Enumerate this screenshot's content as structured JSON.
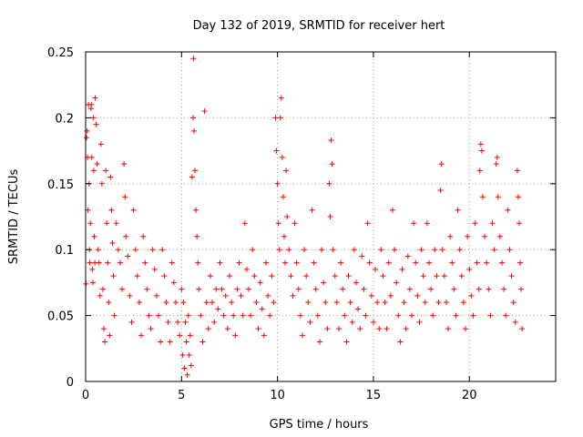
{
  "chart_data": {
    "type": "scatter",
    "title": "Day 132 of 2019, SRMTID for receiver hert",
    "xlabel": "GPS time / hours",
    "ylabel": "SRMTID / TECUs",
    "xlim": [
      0,
      24.5
    ],
    "ylim": [
      0,
      0.25
    ],
    "x_ticks": [
      0,
      5,
      10,
      15,
      20
    ],
    "y_ticks": [
      0,
      0.05,
      0.1,
      0.15,
      0.2,
      0.25
    ],
    "x_tick_labels": [
      "0",
      "5",
      "10",
      "15",
      "20"
    ],
    "y_tick_labels": [
      "0",
      "0.05",
      "0.1",
      "0.15",
      "0.2",
      "0.25"
    ],
    "grid": true,
    "marker": "plus",
    "color": "#ff0000",
    "series": [
      {
        "name": "SRMTID",
        "points": [
          [
            0.02,
            0.074
          ],
          [
            0.05,
            0.185
          ],
          [
            0.08,
            0.19
          ],
          [
            0.1,
            0.17
          ],
          [
            0.12,
            0.13
          ],
          [
            0.15,
            0.21
          ],
          [
            0.18,
            0.15
          ],
          [
            0.2,
            0.1
          ],
          [
            0.22,
            0.09
          ],
          [
            0.25,
            0.12
          ],
          [
            0.28,
            0.207
          ],
          [
            0.3,
            0.21
          ],
          [
            0.32,
            0.17
          ],
          [
            0.35,
            0.085
          ],
          [
            0.38,
            0.075
          ],
          [
            0.4,
            0.2
          ],
          [
            0.42,
            0.16
          ],
          [
            0.45,
            0.11
          ],
          [
            0.48,
            0.09
          ],
          [
            0.5,
            0.215
          ],
          [
            0.55,
            0.195
          ],
          [
            0.6,
            0.165
          ],
          [
            0.65,
            0.1
          ],
          [
            0.7,
            0.09
          ],
          [
            0.75,
            0.065
          ],
          [
            0.8,
            0.18
          ],
          [
            0.85,
            0.15
          ],
          [
            0.9,
            0.07
          ],
          [
            0.95,
            0.04
          ],
          [
            1.0,
            0.03
          ],
          [
            1.05,
            0.16
          ],
          [
            1.1,
            0.12
          ],
          [
            1.15,
            0.09
          ],
          [
            1.2,
            0.06
          ],
          [
            1.25,
            0.035
          ],
          [
            1.3,
            0.155
          ],
          [
            1.35,
            0.13
          ],
          [
            1.4,
            0.105
          ],
          [
            1.45,
            0.08
          ],
          [
            1.5,
            0.05
          ],
          [
            1.6,
            0.12
          ],
          [
            1.7,
            0.1
          ],
          [
            1.8,
            0.09
          ],
          [
            1.9,
            0.07
          ],
          [
            2.0,
            0.165
          ],
          [
            2.05,
            0.14
          ],
          [
            2.1,
            0.11
          ],
          [
            2.2,
            0.095
          ],
          [
            2.3,
            0.065
          ],
          [
            2.4,
            0.045
          ],
          [
            2.5,
            0.13
          ],
          [
            2.6,
            0.1
          ],
          [
            2.7,
            0.08
          ],
          [
            2.8,
            0.06
          ],
          [
            2.9,
            0.035
          ],
          [
            3.0,
            0.11
          ],
          [
            3.1,
            0.09
          ],
          [
            3.2,
            0.07
          ],
          [
            3.3,
            0.05
          ],
          [
            3.4,
            0.04
          ],
          [
            3.5,
            0.1
          ],
          [
            3.6,
            0.085
          ],
          [
            3.7,
            0.065
          ],
          [
            3.8,
            0.05
          ],
          [
            3.9,
            0.03
          ],
          [
            4.0,
            0.1
          ],
          [
            4.1,
            0.08
          ],
          [
            4.2,
            0.06
          ],
          [
            4.3,
            0.045
          ],
          [
            4.4,
            0.03
          ],
          [
            4.5,
            0.09
          ],
          [
            4.6,
            0.075
          ],
          [
            4.7,
            0.06
          ],
          [
            4.8,
            0.045
          ],
          [
            4.9,
            0.035
          ],
          [
            5.0,
            0.07
          ],
          [
            5.05,
            0.02
          ],
          [
            5.1,
            0.06
          ],
          [
            5.15,
            0.01
          ],
          [
            5.2,
            0.045
          ],
          [
            5.25,
            0.03
          ],
          [
            5.3,
            0.005
          ],
          [
            5.35,
            0.05
          ],
          [
            5.4,
            0.02
          ],
          [
            5.45,
            0.035
          ],
          [
            5.5,
            0.012
          ],
          [
            5.55,
            0.155
          ],
          [
            5.6,
            0.2
          ],
          [
            5.62,
            0.245
          ],
          [
            5.65,
            0.19
          ],
          [
            5.7,
            0.16
          ],
          [
            5.75,
            0.13
          ],
          [
            5.8,
            0.11
          ],
          [
            5.85,
            0.09
          ],
          [
            5.9,
            0.07
          ],
          [
            6.0,
            0.05
          ],
          [
            6.1,
            0.03
          ],
          [
            6.2,
            0.205
          ],
          [
            6.3,
            0.06
          ],
          [
            6.4,
            0.04
          ],
          [
            6.5,
            0.08
          ],
          [
            6.6,
            0.06
          ],
          [
            6.7,
            0.045
          ],
          [
            6.8,
            0.07
          ],
          [
            6.9,
            0.055
          ],
          [
            7.0,
            0.09
          ],
          [
            7.1,
            0.07
          ],
          [
            7.2,
            0.05
          ],
          [
            7.3,
            0.065
          ],
          [
            7.4,
            0.04
          ],
          [
            7.5,
            0.08
          ],
          [
            7.6,
            0.06
          ],
          [
            7.7,
            0.05
          ],
          [
            7.8,
            0.035
          ],
          [
            7.9,
            0.07
          ],
          [
            8.0,
            0.09
          ],
          [
            8.1,
            0.065
          ],
          [
            8.2,
            0.05
          ],
          [
            8.3,
            0.12
          ],
          [
            8.4,
            0.085
          ],
          [
            8.5,
            0.07
          ],
          [
            8.6,
            0.05
          ],
          [
            8.7,
            0.1
          ],
          [
            8.8,
            0.08
          ],
          [
            8.9,
            0.06
          ],
          [
            9.0,
            0.04
          ],
          [
            9.1,
            0.075
          ],
          [
            9.2,
            0.055
          ],
          [
            9.3,
            0.035
          ],
          [
            9.4,
            0.09
          ],
          [
            9.5,
            0.065
          ],
          [
            9.6,
            0.05
          ],
          [
            9.7,
            0.08
          ],
          [
            9.8,
            0.06
          ],
          [
            9.9,
            0.2
          ],
          [
            9.95,
            0.175
          ],
          [
            10.0,
            0.15
          ],
          [
            10.05,
            0.12
          ],
          [
            10.1,
            0.1
          ],
          [
            10.15,
            0.2
          ],
          [
            10.2,
            0.215
          ],
          [
            10.25,
            0.17
          ],
          [
            10.3,
            0.14
          ],
          [
            10.35,
            0.11
          ],
          [
            10.4,
            0.09
          ],
          [
            10.45,
            0.16
          ],
          [
            10.5,
            0.125
          ],
          [
            10.6,
            0.1
          ],
          [
            10.7,
            0.08
          ],
          [
            10.8,
            0.065
          ],
          [
            10.9,
            0.12
          ],
          [
            11.0,
            0.09
          ],
          [
            11.1,
            0.07
          ],
          [
            11.2,
            0.05
          ],
          [
            11.3,
            0.035
          ],
          [
            11.4,
            0.1
          ],
          [
            11.5,
            0.08
          ],
          [
            11.6,
            0.06
          ],
          [
            11.7,
            0.045
          ],
          [
            11.8,
            0.13
          ],
          [
            11.9,
            0.09
          ],
          [
            12.0,
            0.07
          ],
          [
            12.1,
            0.05
          ],
          [
            12.2,
            0.03
          ],
          [
            12.3,
            0.1
          ],
          [
            12.4,
            0.075
          ],
          [
            12.5,
            0.06
          ],
          [
            12.6,
            0.04
          ],
          [
            12.7,
            0.15
          ],
          [
            12.75,
            0.125
          ],
          [
            12.8,
            0.183
          ],
          [
            12.85,
            0.165
          ],
          [
            12.9,
            0.1
          ],
          [
            13.0,
            0.08
          ],
          [
            13.1,
            0.06
          ],
          [
            13.2,
            0.04
          ],
          [
            13.3,
            0.09
          ],
          [
            13.4,
            0.07
          ],
          [
            13.5,
            0.05
          ],
          [
            13.6,
            0.03
          ],
          [
            13.7,
            0.08
          ],
          [
            13.8,
            0.06
          ],
          [
            13.9,
            0.045
          ],
          [
            14.0,
            0.1
          ],
          [
            14.1,
            0.075
          ],
          [
            14.2,
            0.055
          ],
          [
            14.3,
            0.04
          ],
          [
            14.4,
            0.095
          ],
          [
            14.5,
            0.07
          ],
          [
            14.6,
            0.05
          ],
          [
            14.7,
            0.12
          ],
          [
            14.8,
            0.09
          ],
          [
            14.9,
            0.065
          ],
          [
            15.0,
            0.045
          ],
          [
            15.1,
            0.085
          ],
          [
            15.2,
            0.06
          ],
          [
            15.3,
            0.04
          ],
          [
            15.4,
            0.1
          ],
          [
            15.5,
            0.08
          ],
          [
            15.6,
            0.06
          ],
          [
            15.7,
            0.04
          ],
          [
            15.8,
            0.09
          ],
          [
            15.9,
            0.065
          ],
          [
            16.0,
            0.13
          ],
          [
            16.1,
            0.1
          ],
          [
            16.2,
            0.075
          ],
          [
            16.3,
            0.05
          ],
          [
            16.4,
            0.03
          ],
          [
            16.5,
            0.085
          ],
          [
            16.6,
            0.06
          ],
          [
            16.7,
            0.04
          ],
          [
            16.8,
            0.095
          ],
          [
            16.9,
            0.07
          ],
          [
            17.0,
            0.05
          ],
          [
            17.1,
            0.12
          ],
          [
            17.2,
            0.09
          ],
          [
            17.3,
            0.065
          ],
          [
            17.4,
            0.045
          ],
          [
            17.5,
            0.1
          ],
          [
            17.6,
            0.08
          ],
          [
            17.7,
            0.06
          ],
          [
            17.8,
            0.12
          ],
          [
            17.9,
            0.09
          ],
          [
            18.0,
            0.07
          ],
          [
            18.1,
            0.05
          ],
          [
            18.2,
            0.1
          ],
          [
            18.3,
            0.08
          ],
          [
            18.4,
            0.06
          ],
          [
            18.5,
            0.145
          ],
          [
            18.55,
            0.165
          ],
          [
            18.6,
            0.1
          ],
          [
            18.7,
            0.08
          ],
          [
            18.8,
            0.06
          ],
          [
            18.9,
            0.04
          ],
          [
            19.0,
            0.11
          ],
          [
            19.1,
            0.09
          ],
          [
            19.2,
            0.07
          ],
          [
            19.3,
            0.05
          ],
          [
            19.4,
            0.13
          ],
          [
            19.5,
            0.1
          ],
          [
            19.6,
            0.08
          ],
          [
            19.7,
            0.06
          ],
          [
            19.8,
            0.04
          ],
          [
            19.9,
            0.11
          ],
          [
            20.0,
            0.085
          ],
          [
            20.1,
            0.065
          ],
          [
            20.2,
            0.05
          ],
          [
            20.3,
            0.12
          ],
          [
            20.4,
            0.09
          ],
          [
            20.5,
            0.07
          ],
          [
            20.55,
            0.16
          ],
          [
            20.6,
            0.18
          ],
          [
            20.65,
            0.175
          ],
          [
            20.7,
            0.14
          ],
          [
            20.8,
            0.11
          ],
          [
            20.9,
            0.09
          ],
          [
            21.0,
            0.07
          ],
          [
            21.1,
            0.05
          ],
          [
            21.2,
            0.12
          ],
          [
            21.3,
            0.1
          ],
          [
            21.4,
            0.165
          ],
          [
            21.45,
            0.17
          ],
          [
            21.5,
            0.14
          ],
          [
            21.6,
            0.11
          ],
          [
            21.7,
            0.09
          ],
          [
            21.8,
            0.07
          ],
          [
            21.9,
            0.05
          ],
          [
            22.0,
            0.13
          ],
          [
            22.1,
            0.1
          ],
          [
            22.2,
            0.08
          ],
          [
            22.3,
            0.06
          ],
          [
            22.4,
            0.045
          ],
          [
            22.5,
            0.16
          ],
          [
            22.55,
            0.14
          ],
          [
            22.6,
            0.12
          ],
          [
            22.65,
            0.09
          ],
          [
            22.7,
            0.07
          ],
          [
            22.75,
            0.04
          ]
        ]
      }
    ]
  }
}
